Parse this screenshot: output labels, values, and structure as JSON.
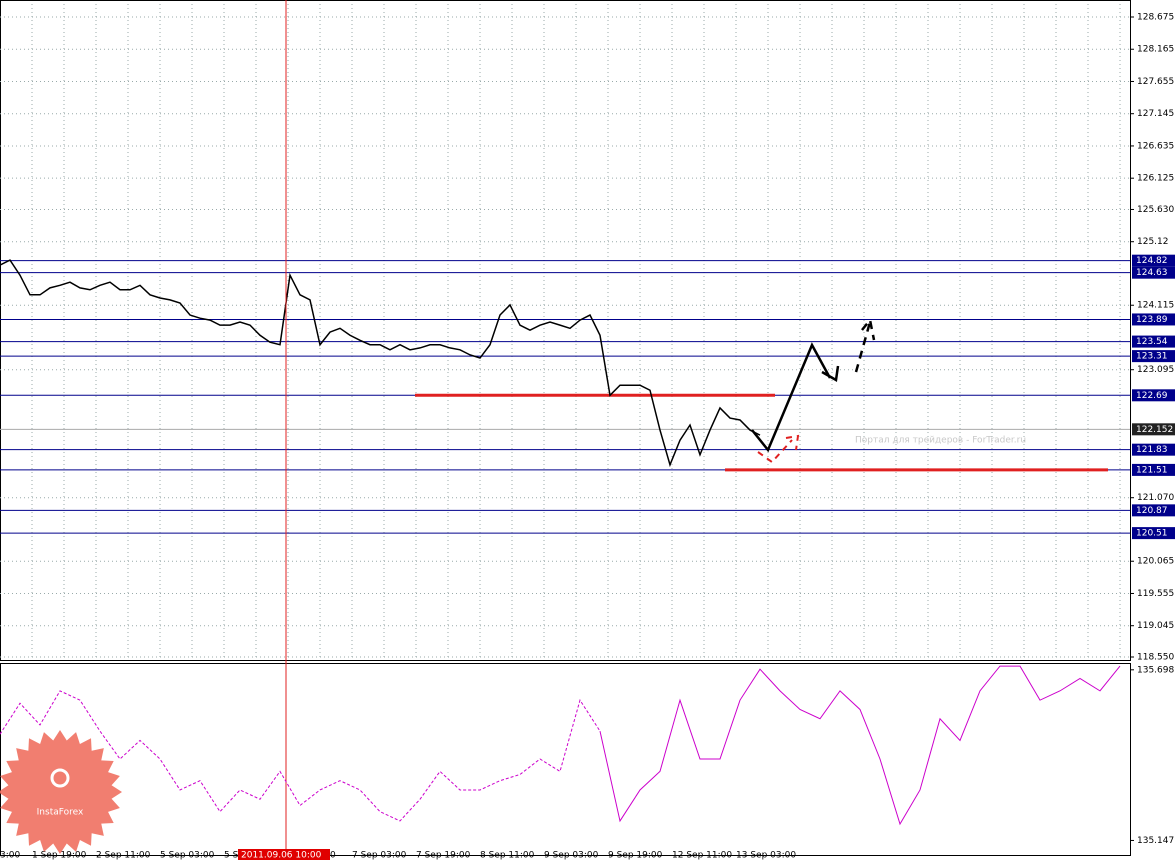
{
  "chart_data": [
    {
      "type": "line",
      "color": "#000000",
      "xlim": [
        0,
        113
      ],
      "ylim": [
        118.55,
        128.675
      ],
      "yticks": [
        128.675,
        128.165,
        127.655,
        127.145,
        126.635,
        126.125,
        {
          "value": 125.63,
          "label": "125.630"
        },
        125.12,
        124.115,
        123.095,
        {
          "value": 121.07,
          "label": "121.070"
        },
        120.065,
        119.555,
        119.045,
        {
          "value": 118.55,
          "label": "118.550"
        }
      ],
      "grid": true,
      "values": [
        124.75,
        124.83,
        124.59,
        124.28,
        124.28,
        124.39,
        124.43,
        124.48,
        124.39,
        124.36,
        124.43,
        124.48,
        124.36,
        124.36,
        124.43,
        124.28,
        124.23,
        124.2,
        124.15,
        123.96,
        123.91,
        123.88,
        123.8,
        123.8,
        123.85,
        123.8,
        123.64,
        123.53,
        123.49,
        124.59,
        124.28,
        124.2,
        123.49,
        123.69,
        123.75,
        123.64,
        123.56,
        123.49,
        123.49,
        123.41,
        123.49,
        123.41,
        123.44,
        123.49,
        123.49,
        123.44,
        123.41,
        123.33,
        123.28,
        123.49,
        123.96,
        124.12,
        123.8,
        123.72,
        123.8,
        123.85,
        123.8,
        123.75,
        123.88,
        123.96,
        123.64,
        122.69,
        122.85,
        122.85,
        122.85,
        122.77,
        122.14,
        121.59,
        121.98,
        122.22,
        121.75,
        122.14,
        122.49,
        122.33,
        122.3,
        122.14,
        122.06
      ],
      "levels": [
        124.82,
        124.63,
        123.89,
        123.54,
        123.31,
        122.69,
        121.83,
        121.51,
        120.87,
        120.51
      ],
      "level_color": "#00008b",
      "current_price": 122.152,
      "support_lines": [
        122.69,
        121.51
      ],
      "support_color": "#e02020",
      "xlabels": [
        "3:00",
        "1 Sep 19:00",
        "2 Sep 11:00",
        "5 Sep 03:00",
        "5 S",
        "0",
        "7 Sep 03:00",
        "7 Sep 19:00",
        "8 Sep 11:00",
        "9 Sep 03:00",
        "9 Sep 19:00",
        "12 Sep 11:00",
        "13 Sep 03:00"
      ],
      "marker_label": "2011.09.06 10:00",
      "watermark": "Портал для трейдеров - ForTrader.ru",
      "logo": "InstaForex"
    },
    {
      "type": "line",
      "ylim": [
        135.1,
        135.72
      ],
      "yticks": [
        135.698,
        135.147
      ],
      "series": [
        {
          "color": "#cc00cc",
          "dash": true,
          "values": [
            135.49,
            135.59,
            135.52,
            135.63,
            135.6,
            135.5,
            135.41,
            135.47,
            135.41,
            135.31,
            135.34,
            135.24,
            135.31,
            135.28,
            135.37,
            135.26,
            135.31,
            135.34,
            135.31,
            135.24,
            135.21,
            135.28,
            135.37,
            135.31,
            135.31,
            135.34,
            135.36,
            135.41,
            135.37,
            135.6,
            135.5,
            null,
            null,
            null,
            null,
            null,
            null,
            null,
            null,
            null,
            null,
            null,
            null,
            null,
            null,
            null,
            null,
            null,
            null,
            null,
            null,
            null,
            null,
            null,
            null,
            null,
            null
          ]
        },
        {
          "color": "#cc00cc",
          "dash": false,
          "values": [
            null,
            null,
            null,
            null,
            null,
            null,
            null,
            null,
            null,
            null,
            null,
            null,
            null,
            null,
            null,
            null,
            null,
            null,
            null,
            null,
            null,
            null,
            null,
            null,
            null,
            null,
            null,
            null,
            null,
            null,
            135.5,
            135.21,
            135.31,
            135.37,
            135.6,
            135.41,
            135.41,
            135.6,
            135.7,
            135.63,
            135.57,
            135.54,
            135.63,
            135.57,
            135.41,
            135.2,
            135.31,
            135.54,
            135.47,
            135.63,
            135.71,
            135.71,
            135.6,
            135.63,
            135.67,
            135.63,
            135.71
          ]
        }
      ]
    }
  ]
}
